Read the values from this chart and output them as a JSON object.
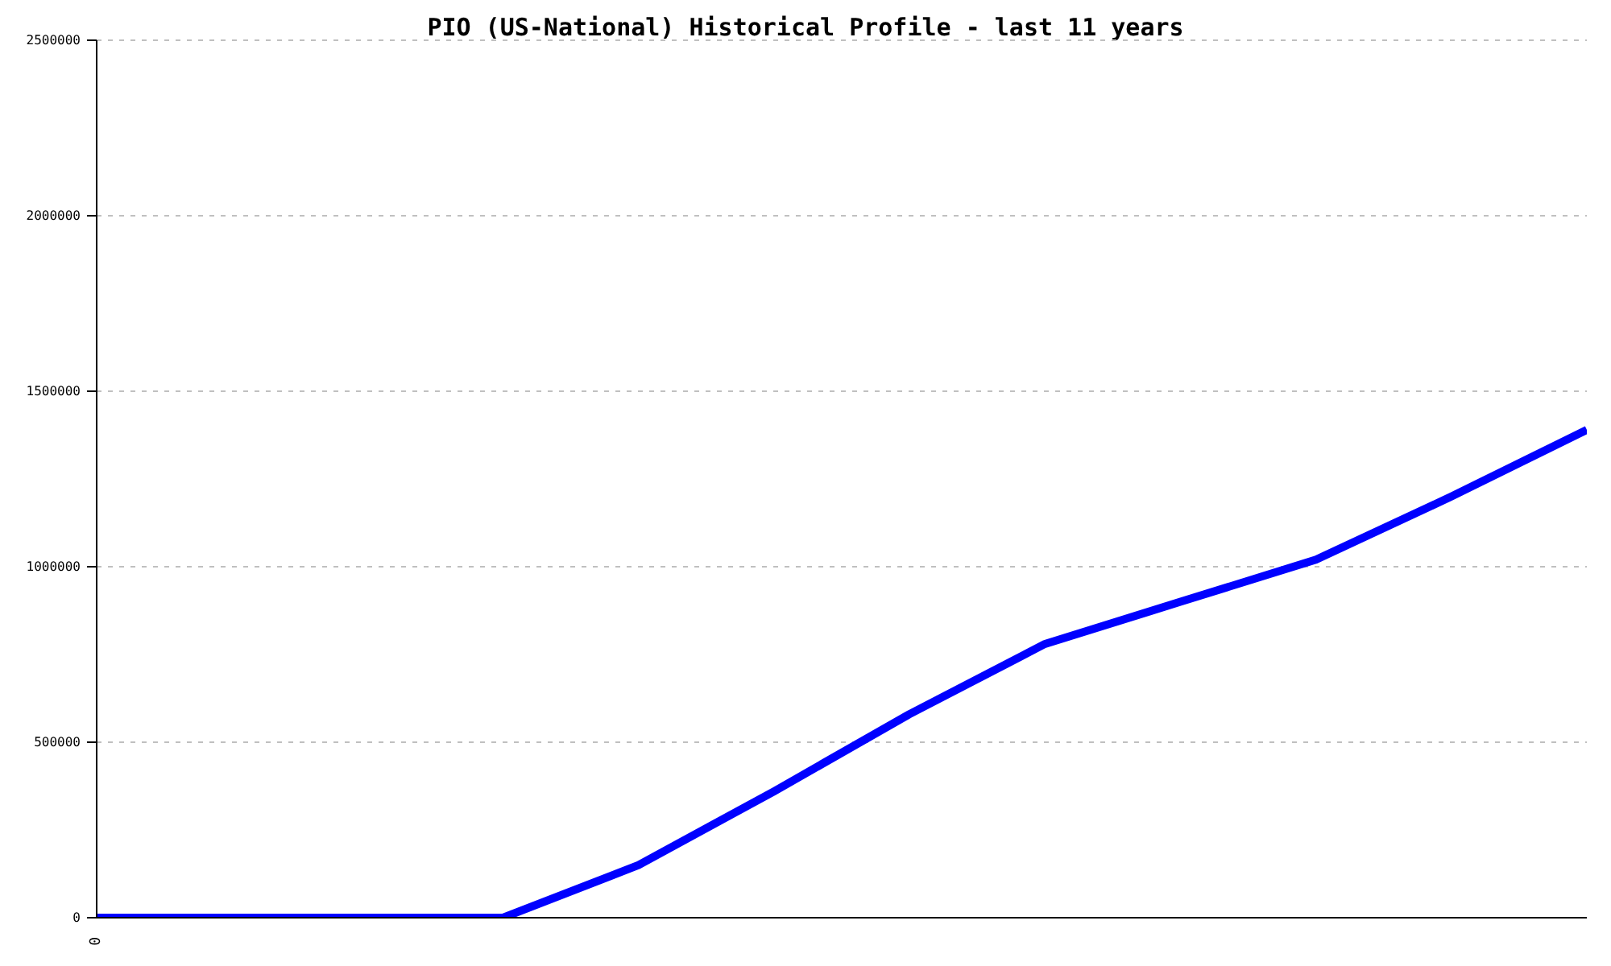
{
  "chart_data": {
    "type": "line",
    "title": "PIO (US-National) Historical Profile - last 11 years",
    "categories": [
      "0",
      null,
      null,
      null,
      null,
      null,
      null,
      null,
      null,
      null,
      null,
      null
    ],
    "series": [
      {
        "color": "#0000ff",
        "values": [
          0,
          0,
          0,
          0,
          150000,
          360000,
          580000,
          780000,
          900000,
          1020000,
          1200000,
          1390000
        ]
      }
    ],
    "ylim": [
      0,
      2500000
    ],
    "yticks": [
      0,
      500000,
      1000000,
      1500000,
      2000000,
      2500000
    ],
    "grid": "y",
    "marker": "none",
    "line_style": "solid"
  }
}
